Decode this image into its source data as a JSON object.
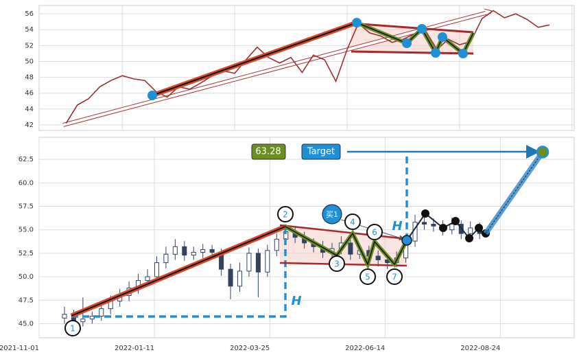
{
  "chart_data": [
    {
      "type": "line",
      "color": "#9b2f2f",
      "x": [
        0,
        5,
        10,
        15,
        20,
        25,
        30,
        35,
        40,
        45,
        50,
        55,
        60,
        65,
        70,
        75,
        80,
        85,
        90,
        95,
        100,
        105,
        110,
        115,
        120,
        125,
        130,
        135,
        140,
        145,
        150,
        155,
        160,
        165,
        170,
        175,
        180,
        185,
        190,
        195,
        200,
        205,
        210,
        215
      ],
      "values": [
        42.2,
        44.5,
        45.3,
        46.8,
        47.6,
        48.2,
        47.8,
        47.6,
        46.2,
        45.5,
        46.8,
        46.5,
        47.3,
        48.2,
        48.8,
        48.5,
        50.2,
        51.8,
        50.5,
        49.8,
        50.5,
        48.6,
        50.8,
        50.2,
        47.5,
        51.5,
        54.8,
        53.6,
        53.2,
        52.4,
        52.8,
        53.5,
        53.8,
        51.5,
        52.8,
        52.1,
        52.5,
        55.4,
        56.4,
        55.5,
        56.0,
        55.3,
        54.3,
        54.6
      ],
      "xlim": [
        -12,
        226
      ],
      "xticks": [
        25,
        75,
        125,
        175,
        225
      ],
      "ylim": [
        41.3,
        57.05
      ],
      "yticks": [
        42,
        44,
        46,
        48,
        50,
        52,
        54,
        56
      ],
      "grid": true
    },
    {
      "type": "candlestick",
      "color": "#34425f",
      "x": [
        9,
        13,
        17,
        21,
        25,
        29,
        33,
        37,
        41,
        45,
        49,
        53,
        57,
        61,
        65,
        69,
        73,
        77,
        81,
        85,
        89,
        93,
        97,
        101,
        105,
        109,
        113,
        117,
        121,
        125,
        129,
        133,
        137,
        141,
        145,
        149,
        153,
        157,
        161,
        165,
        169,
        173,
        177,
        181,
        185,
        189
      ],
      "open": [
        45.6,
        46.0,
        45.2,
        45.5,
        45.8,
        46.6,
        47.4,
        48.0,
        48.8,
        49.6,
        50.0,
        51.5,
        52.4,
        53.2,
        52.3,
        52.6,
        52.9,
        52.6,
        50.8,
        49.0,
        50.6,
        52.5,
        50.5,
        52.8,
        54.0,
        54.8,
        54.2,
        53.6,
        53.2,
        52.6,
        53.0,
        53.6,
        52.4,
        52.8,
        52.2,
        51.8,
        51.5,
        52.0,
        53.8,
        55.8,
        55.6,
        55.4,
        55.0,
        55.6,
        54.6,
        55.2
      ],
      "high": [
        46.8,
        46.5,
        47.8,
        46.3,
        47.2,
        48.0,
        48.7,
        49.5,
        50.3,
        50.8,
        52.2,
        53.2,
        54.0,
        53.8,
        53.2,
        53.5,
        53.4,
        53.0,
        51.4,
        51.5,
        53.1,
        53.0,
        53.4,
        54.6,
        55.6,
        55.3,
        54.8,
        54.1,
        53.8,
        53.6,
        54.3,
        54.1,
        53.4,
        53.3,
        52.8,
        52.4,
        52.7,
        54.5,
        56.6,
        56.4,
        56.2,
        56.0,
        56.3,
        56.0,
        55.9,
        55.8
      ],
      "low": [
        45.0,
        44.5,
        44.7,
        45.0,
        45.3,
        46.0,
        46.8,
        47.4,
        48.2,
        49.0,
        49.4,
        50.9,
        51.8,
        51.7,
        51.8,
        52.0,
        52.0,
        50.1,
        47.6,
        48.4,
        50.0,
        47.8,
        50.0,
        52.2,
        53.4,
        53.6,
        53.0,
        52.6,
        52.0,
        52.1,
        52.4,
        51.8,
        51.9,
        51.6,
        51.1,
        50.8,
        51.0,
        51.5,
        53.2,
        55.0,
        54.8,
        54.4,
        54.5,
        54.0,
        54.1,
        54.0
      ],
      "close": [
        46.0,
        45.2,
        45.5,
        45.8,
        46.6,
        47.4,
        48.0,
        48.8,
        49.6,
        50.0,
        51.5,
        52.4,
        53.2,
        52.3,
        52.6,
        52.9,
        52.6,
        50.8,
        49.0,
        50.6,
        52.5,
        50.5,
        52.8,
        54.0,
        54.8,
        54.2,
        53.6,
        53.2,
        52.6,
        53.0,
        53.6,
        52.4,
        52.8,
        52.2,
        51.8,
        51.5,
        52.0,
        53.8,
        55.8,
        55.6,
        55.4,
        55.0,
        55.6,
        54.6,
        55.2,
        54.6
      ],
      "xlim": [
        -2,
        230
      ],
      "xticks": [
        {
          "value": -2,
          "label": "2021-11-01"
        },
        {
          "value": 48,
          "label": "2022-01-11"
        },
        {
          "value": 98,
          "label": "2022-03-25"
        },
        {
          "value": 148,
          "label": "2022-06-14"
        },
        {
          "value": 198,
          "label": "2022-08-24"
        }
      ],
      "ylim": [
        43.5,
        64.85
      ],
      "yticks": [
        {
          "value": 45,
          "label": "45.0"
        },
        47.5,
        {
          "value": 50,
          "label": "50.0"
        },
        52.5,
        {
          "value": 55,
          "label": "55.0"
        },
        57.5,
        {
          "value": 60,
          "label": "60.0"
        },
        62.5
      ],
      "grid": true,
      "annotations": {
        "points": [
          "1",
          "2",
          "3",
          "4",
          "5",
          "6",
          "7"
        ],
        "buy": "买1",
        "height": "H",
        "target_label": "Target",
        "target_value": 63.28
      }
    }
  ]
}
